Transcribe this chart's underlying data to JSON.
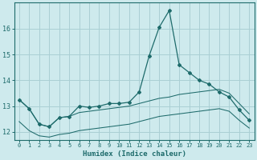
{
  "xlabel": "Humidex (Indice chaleur)",
  "bg_color": "#ceeaed",
  "grid_color": "#aacfd4",
  "line_color": "#1e6b6b",
  "xlim": [
    -0.5,
    23.5
  ],
  "ylim": [
    11.7,
    17.0
  ],
  "yticks": [
    12,
    13,
    14,
    15,
    16
  ],
  "xticks": [
    0,
    1,
    2,
    3,
    4,
    5,
    6,
    7,
    8,
    9,
    10,
    11,
    12,
    13,
    14,
    15,
    16,
    17,
    18,
    19,
    20,
    21,
    22,
    23
  ],
  "series1_x": [
    0,
    1,
    2,
    3,
    4,
    5,
    6,
    7,
    8,
    9,
    10,
    11,
    12,
    13,
    14,
    15,
    16,
    17,
    18,
    19,
    20,
    21,
    22,
    23
  ],
  "series1_y": [
    13.25,
    12.9,
    12.3,
    12.2,
    12.55,
    12.6,
    13.0,
    12.95,
    13.0,
    13.1,
    13.1,
    13.15,
    13.55,
    14.95,
    16.05,
    16.7,
    14.6,
    14.3,
    14.0,
    13.85,
    13.55,
    13.35,
    12.85,
    12.45
  ],
  "series2_x": [
    0,
    1,
    2,
    3,
    4,
    5,
    6,
    7,
    8,
    9,
    10,
    11,
    12,
    13,
    14,
    15,
    16,
    17,
    18,
    19,
    20,
    21,
    22,
    23
  ],
  "series2_y": [
    13.25,
    12.9,
    12.3,
    12.2,
    12.55,
    12.6,
    12.75,
    12.8,
    12.85,
    12.9,
    12.95,
    13.0,
    13.1,
    13.2,
    13.3,
    13.35,
    13.45,
    13.5,
    13.55,
    13.6,
    13.65,
    13.5,
    13.1,
    12.7
  ],
  "series3_x": [
    0,
    1,
    2,
    3,
    4,
    5,
    6,
    7,
    8,
    9,
    10,
    11,
    12,
    13,
    14,
    15,
    16,
    17,
    18,
    19,
    20,
    21,
    22,
    23
  ],
  "series3_y": [
    12.4,
    12.05,
    11.85,
    11.8,
    11.9,
    11.95,
    12.05,
    12.1,
    12.15,
    12.2,
    12.25,
    12.3,
    12.4,
    12.5,
    12.6,
    12.65,
    12.7,
    12.75,
    12.8,
    12.85,
    12.9,
    12.8,
    12.45,
    12.15
  ]
}
